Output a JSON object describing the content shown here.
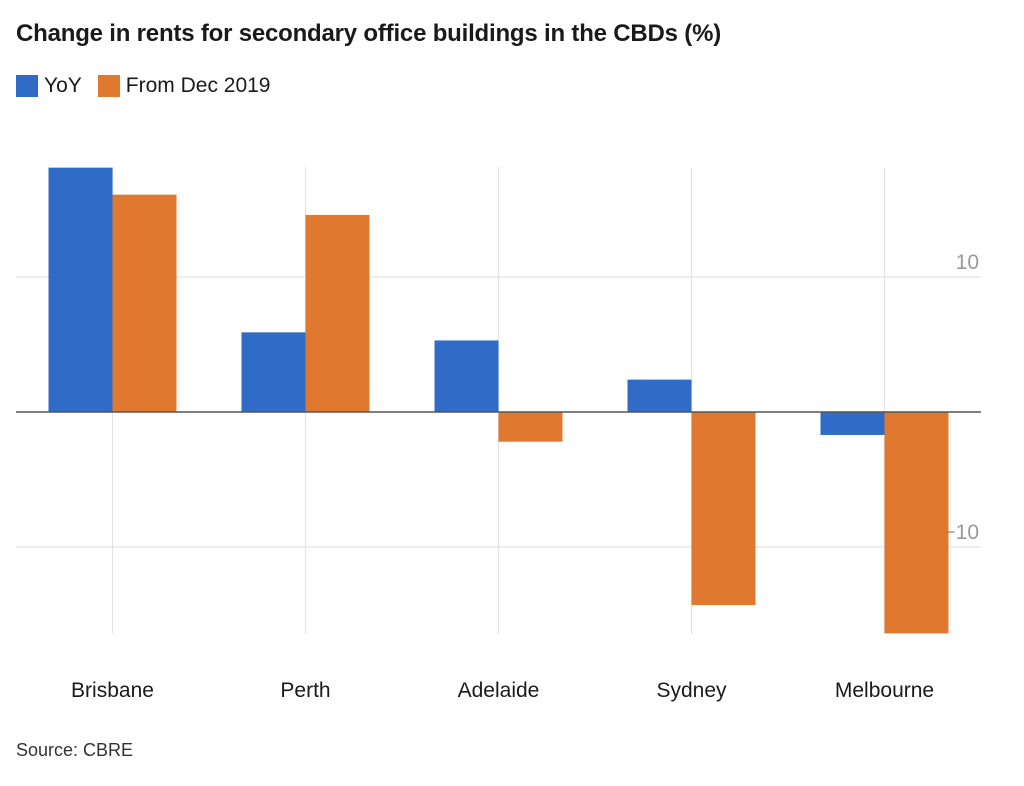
{
  "chart_data": {
    "type": "bar",
    "title": "Change in rents for secondary office buildings in the CBDs (%)",
    "categories": [
      "Brisbane",
      "Perth",
      "Adelaide",
      "Sydney",
      "Melbourne"
    ],
    "series": [
      {
        "name": "YoY",
        "color": "#2f6bc7",
        "values": [
          18.1,
          5.9,
          5.3,
          2.4,
          -1.7
        ]
      },
      {
        "name": "From Dec 2019",
        "color": "#e07830",
        "values": [
          16.1,
          14.6,
          -2.2,
          -14.3,
          -16.4
        ]
      }
    ],
    "yticks": [
      10,
      -10
    ],
    "ytick_labels": [
      "10",
      "−10"
    ],
    "ylim": [
      -16.4,
      18.1
    ],
    "grid": true,
    "legend_position": "top-left",
    "source": "Source: CBRE"
  }
}
